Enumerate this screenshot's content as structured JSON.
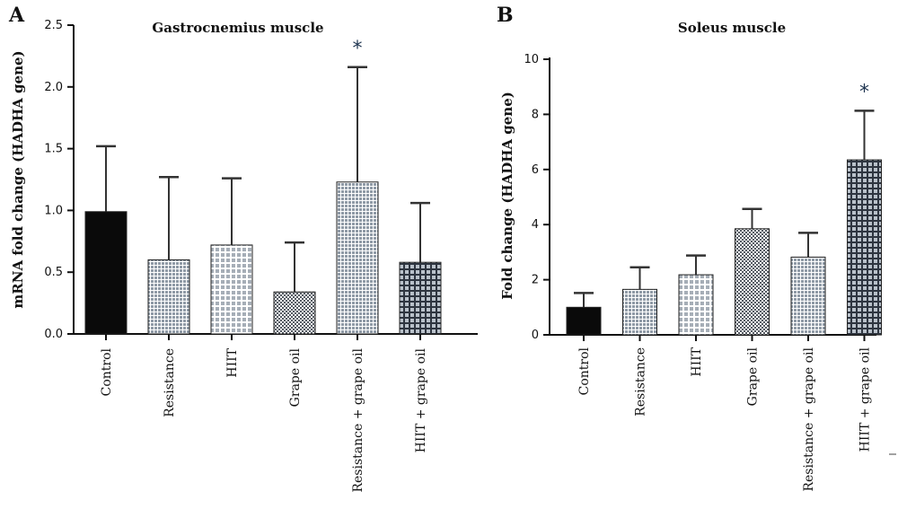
{
  "chart_data": [
    {
      "type": "bar",
      "panel": "A",
      "title": "Gastrocnemius muscle",
      "ylabel": "mRNA fold change (HADHA gene)",
      "xlabel": "",
      "ylim": [
        0,
        2.5
      ],
      "yticks": [
        "0.0",
        "0.5",
        "1.0",
        "1.5",
        "2.0",
        "2.5"
      ],
      "categories": [
        "Control",
        "Resistance",
        "HIIT",
        "Grape oil",
        "Resistance + grape oil",
        "HIIT + grape oil"
      ],
      "values": [
        0.99,
        0.6,
        0.72,
        0.34,
        1.23,
        0.58
      ],
      "errors": [
        0.53,
        0.67,
        0.54,
        0.4,
        0.93,
        0.48
      ],
      "patterns": [
        "solid",
        "fine-grid",
        "light-grid",
        "checker",
        "fine-grid",
        "dark-grid"
      ],
      "annotations": [
        {
          "category": "Resistance + grape oil",
          "text": "*"
        }
      ],
      "grid": false
    },
    {
      "type": "bar",
      "panel": "B",
      "title": "Soleus muscle",
      "ylabel": "Fold change (HADHA gene)",
      "xlabel": "",
      "ylim": [
        0,
        10
      ],
      "yticks": [
        "0",
        "2",
        "4",
        "6",
        "8",
        "10"
      ],
      "categories": [
        "Control",
        "Resistance",
        "HIIT",
        "Grape oil",
        "Resistance + grape oil",
        "HIIT + grape oil"
      ],
      "values": [
        1.0,
        1.65,
        2.18,
        3.85,
        2.82,
        6.35
      ],
      "errors": [
        0.52,
        0.8,
        0.7,
        0.72,
        0.88,
        1.78
      ],
      "patterns": [
        "solid",
        "fine-grid",
        "light-grid",
        "checker",
        "fine-grid",
        "dark-grid"
      ],
      "annotations": [
        {
          "category": "HIIT + grape oil",
          "text": "*"
        }
      ],
      "grid": false
    }
  ],
  "colors": {
    "axis": "#111111",
    "bar_dark": "#0a0a0a",
    "error_bar": "#333333",
    "star": "#1f3550"
  }
}
